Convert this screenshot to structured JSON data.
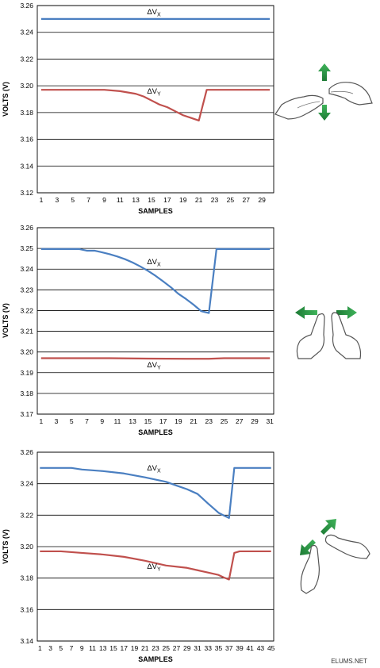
{
  "chart_data": [
    {
      "type": "line",
      "ylabel": "VOLTS (V)",
      "xlabel": "SAMPLES",
      "ylim": [
        3.12,
        3.26
      ],
      "yticks": [
        "3.12",
        "3.14",
        "3.16",
        "3.18",
        "3.20",
        "3.22",
        "3.24",
        "3.26"
      ],
      "xlim": [
        0.5,
        30.5
      ],
      "xticks": [
        "1",
        "3",
        "5",
        "7",
        "9",
        "11",
        "13",
        "15",
        "17",
        "19",
        "21",
        "23",
        "25",
        "27",
        "29"
      ],
      "grid": "horizontal",
      "series": [
        {
          "name": "ΔVX",
          "color": "#4a7fc1",
          "x": [
            1,
            5,
            10,
            15,
            20,
            25,
            30
          ],
          "y": [
            3.25,
            3.25,
            3.25,
            3.25,
            3.25,
            3.25,
            3.25
          ]
        },
        {
          "name": "ΔVY",
          "color": "#c0504d",
          "x": [
            1,
            5,
            9,
            11,
            13,
            14,
            15,
            16,
            17,
            18,
            19,
            20,
            21,
            22,
            23,
            30
          ],
          "y": [
            3.197,
            3.197,
            3.197,
            3.196,
            3.194,
            3.192,
            3.189,
            3.186,
            3.184,
            3.181,
            3.178,
            3.176,
            3.174,
            3.197,
            3.197,
            3.197
          ]
        }
      ]
    },
    {
      "type": "line",
      "ylabel": "VOLTS (V)",
      "xlabel": "SAMPLES",
      "ylim": [
        3.17,
        3.26
      ],
      "yticks": [
        "3.17",
        "3.18",
        "3.19",
        "3.20",
        "3.21",
        "3.22",
        "3.23",
        "3.24",
        "3.25",
        "3.26"
      ],
      "xlim": [
        0.5,
        31.5
      ],
      "xticks": [
        "1",
        "3",
        "5",
        "7",
        "9",
        "11",
        "13",
        "15",
        "17",
        "19",
        "21",
        "23",
        "25",
        "27",
        "29",
        "31"
      ],
      "grid": "horizontal",
      "series": [
        {
          "name": "ΔVX",
          "color": "#4a7fc1",
          "x": [
            1,
            3,
            6,
            7,
            8,
            9,
            10,
            11,
            12,
            13,
            14,
            15,
            16,
            17,
            18,
            19,
            20,
            21,
            22,
            23,
            24,
            25,
            31
          ],
          "y": [
            3.2497,
            3.2497,
            3.2497,
            3.2489,
            3.2489,
            3.2481,
            3.2472,
            3.2461,
            3.2448,
            3.2432,
            3.2413,
            3.2392,
            3.2368,
            3.2341,
            3.2313,
            3.2281,
            3.2256,
            3.2228,
            3.2197,
            3.2188,
            3.2497,
            3.2497,
            3.2497
          ]
        },
        {
          "name": "ΔVY",
          "color": "#c0504d",
          "x": [
            1,
            10,
            15,
            20,
            23,
            25,
            31
          ],
          "y": [
            3.197,
            3.197,
            3.1968,
            3.1967,
            3.1967,
            3.197,
            3.197
          ]
        }
      ]
    },
    {
      "type": "line",
      "ylabel": "VOLTS (V)",
      "xlabel": "SAMPLES",
      "ylim": [
        3.14,
        3.26
      ],
      "yticks": [
        "3.14",
        "3.16",
        "3.18",
        "3.20",
        "3.22",
        "3.24",
        "3.26"
      ],
      "xlim": [
        0.5,
        45.5
      ],
      "xticks": [
        "1",
        "3",
        "5",
        "7",
        "9",
        "11",
        "13",
        "15",
        "17",
        "19",
        "21",
        "23",
        "25",
        "27",
        "29",
        "31",
        "33",
        "35",
        "37",
        "39",
        "41",
        "43",
        "45"
      ],
      "grid": "horizontal",
      "series": [
        {
          "name": "ΔVX",
          "color": "#4a7fc1",
          "x": [
            1,
            7,
            9,
            13,
            17,
            21,
            25,
            27,
            29,
            31,
            32,
            33,
            34,
            35,
            36,
            37,
            38,
            39,
            41,
            45
          ],
          "y": [
            3.25,
            3.25,
            3.249,
            3.248,
            3.2465,
            3.244,
            3.2412,
            3.2388,
            3.2365,
            3.2335,
            3.2305,
            3.2274,
            3.2245,
            3.2215,
            3.2198,
            3.2182,
            3.25,
            3.25,
            3.25,
            3.25
          ]
        },
        {
          "name": "ΔVY",
          "color": "#c0504d",
          "x": [
            1,
            5,
            9,
            13,
            17,
            21,
            25,
            29,
            31,
            33,
            35,
            36,
            37,
            38,
            39,
            45
          ],
          "y": [
            3.197,
            3.197,
            3.196,
            3.195,
            3.1935,
            3.191,
            3.188,
            3.1865,
            3.185,
            3.1835,
            3.182,
            3.1804,
            3.1791,
            3.196,
            3.197,
            3.197
          ]
        }
      ]
    }
  ],
  "series_labels": {
    "vx_delta": "ΔV",
    "vx_sub": "X",
    "vy_delta": "ΔV",
    "vy_sub": "Y"
  },
  "gestures": [
    {
      "icon": "two-finger-vertical-swipe-icon",
      "color": "#2e9e4b"
    },
    {
      "icon": "two-finger-horizontal-spread-icon",
      "color": "#2e9e4b"
    },
    {
      "icon": "two-finger-diagonal-spread-icon",
      "color": "#2e9e4b"
    }
  ],
  "watermark": "ELUMS.NET"
}
